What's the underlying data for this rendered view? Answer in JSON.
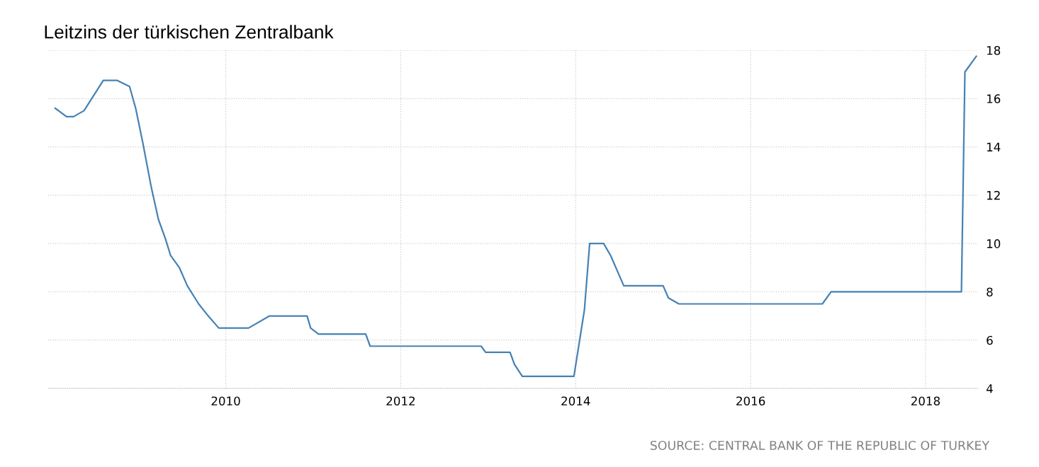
{
  "chart_data": {
    "type": "line",
    "title": "Leitzins der türkischen Zentralbank",
    "x": [
      2008.05,
      2008.18,
      2008.26,
      2008.38,
      2008.6,
      2008.76,
      2008.9,
      2008.97,
      2009.05,
      2009.15,
      2009.23,
      2009.31,
      2009.37,
      2009.47,
      2009.56,
      2009.69,
      2009.8,
      2009.92,
      2010.26,
      2010.5,
      2010.93,
      2010.97,
      2011.06,
      2011.6,
      2011.65,
      2012.92,
      2012.97,
      2013.25,
      2013.3,
      2013.39,
      2013.98,
      2014.1,
      2014.16,
      2014.32,
      2014.4,
      2014.55,
      2015.0,
      2015.06,
      2015.18,
      2016.82,
      2016.92,
      2018.41,
      2018.45,
      2018.58
    ],
    "series": [
      {
        "color": "#4682b4",
        "values": [
          15.6,
          15.25,
          15.25,
          15.5,
          16.75,
          16.75,
          16.5,
          15.6,
          14.2,
          12.3,
          11.0,
          10.2,
          9.5,
          9.0,
          8.25,
          7.5,
          7.0,
          6.5,
          6.5,
          7.0,
          7.0,
          6.5,
          6.25,
          6.25,
          5.75,
          5.75,
          5.5,
          5.5,
          5.0,
          4.5,
          4.5,
          7.25,
          10.0,
          10.0,
          9.5,
          8.25,
          8.25,
          7.75,
          7.5,
          7.5,
          8.0,
          8.0,
          17.1,
          17.75
        ]
      }
    ],
    "xlim": [
      2007.97,
      2018.6
    ],
    "xticks": [
      2010,
      2012,
      2014,
      2016,
      2018
    ],
    "ylim": [
      4,
      18
    ],
    "yticks": [
      4,
      6,
      8,
      10,
      12,
      14,
      16,
      18
    ],
    "grid": true,
    "line_style": "solid",
    "marker": "none",
    "annotations": [
      "SOURCE: CENTRAL BANK OF THE REPUBLIC OF TURKEY"
    ]
  }
}
